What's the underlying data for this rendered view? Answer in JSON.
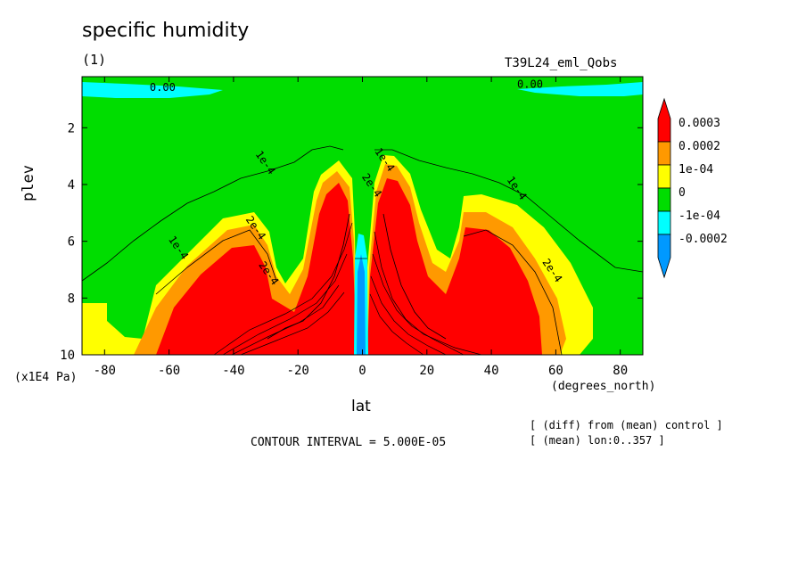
{
  "header": {
    "title": "specific humidity",
    "panel": "(1)",
    "run": "T39L24_eml_Qobs"
  },
  "footer": {
    "contour_interval": "CONTOUR INTERVAL = 5.000E-05",
    "note_diff": "[ (diff) from (mean) control ]",
    "note_mean": "[ (mean) lon:0..357 ]"
  },
  "colors": {
    "red": "#ff0000",
    "orange": "#ff9900",
    "yellow": "#ffff00",
    "green": "#00dd00",
    "cyan": "#00ffff",
    "blue": "#0099ff"
  },
  "chart_data": {
    "type": "heatmap",
    "subtype": "filled contour",
    "title": "specific humidity",
    "xlabel": "lat",
    "xunit": "(degrees_north)",
    "ylabel": "plev",
    "yunit": "(x1E4 Pa)",
    "xlim": [
      -87,
      87
    ],
    "ylim": [
      10,
      0.2
    ],
    "x_ticks": [
      -80,
      -60,
      -40,
      -20,
      0,
      20,
      40,
      60,
      80
    ],
    "y_ticks": [
      2,
      4,
      6,
      8,
      10
    ],
    "colorbar": {
      "labels": [
        "0.0003",
        "0.0002",
        "1e-04",
        "0",
        "-1e-04",
        "-0.0002"
      ],
      "colors": [
        "#ff0000",
        "#ff9900",
        "#ffff00",
        "#00dd00",
        "#00ffff",
        "#0099ff"
      ]
    },
    "contour_labels": [
      "0.00",
      "0.00",
      "1e-4",
      "1e-4",
      "1e-4",
      "1e-4",
      "2e-4",
      "2e-4",
      "2e-4",
      "2e-4"
    ]
  }
}
